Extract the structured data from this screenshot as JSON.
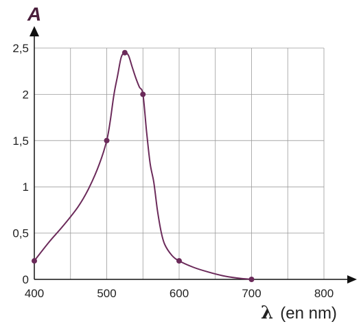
{
  "chart_data": {
    "type": "line",
    "ylabel": "A",
    "xlabel_symbol": "λ",
    "xlabel_unit": "(en nm)",
    "xlim": [
      400,
      800
    ],
    "ylim": [
      0,
      2.5
    ],
    "x_ticks": [
      {
        "value": 400,
        "label": "400"
      },
      {
        "value": 500,
        "label": "500"
      },
      {
        "value": 600,
        "label": "600"
      },
      {
        "value": 700,
        "label": "700"
      },
      {
        "value": 800,
        "label": "800"
      }
    ],
    "y_ticks": [
      {
        "value": 0,
        "label": "0"
      },
      {
        "value": 0.5,
        "label": "0,5"
      },
      {
        "value": 1,
        "label": "1"
      },
      {
        "value": 1.5,
        "label": "1,5"
      },
      {
        "value": 2,
        "label": "2"
      },
      {
        "value": 2.5,
        "label": "2,5"
      }
    ],
    "grid": true,
    "grid_x_step": 50,
    "grid_y_step": 0.5,
    "line_color": "#6b2a5a",
    "grid_color": "#9a9a9a",
    "series": [
      {
        "points": [
          {
            "x": 400,
            "y": 0.2
          },
          {
            "x": 500,
            "y": 1.5
          },
          {
            "x": 525,
            "y": 2.45
          },
          {
            "x": 550,
            "y": 2.0
          },
          {
            "x": 600,
            "y": 0.2
          },
          {
            "x": 700,
            "y": 0.0
          }
        ],
        "curve": [
          [
            400,
            0.2
          ],
          [
            420,
            0.4
          ],
          [
            440,
            0.58
          ],
          [
            460,
            0.78
          ],
          [
            475,
            0.98
          ],
          [
            490,
            1.25
          ],
          [
            500,
            1.5
          ],
          [
            505,
            1.72
          ],
          [
            510,
            2.0
          ],
          [
            515,
            2.2
          ],
          [
            520,
            2.4
          ],
          [
            525,
            2.45
          ],
          [
            530,
            2.42
          ],
          [
            535,
            2.3
          ],
          [
            540,
            2.18
          ],
          [
            545,
            2.08
          ],
          [
            550,
            2.0
          ],
          [
            555,
            1.6
          ],
          [
            560,
            1.25
          ],
          [
            565,
            1.05
          ],
          [
            570,
            0.75
          ],
          [
            575,
            0.52
          ],
          [
            580,
            0.38
          ],
          [
            590,
            0.26
          ],
          [
            600,
            0.2
          ],
          [
            620,
            0.13
          ],
          [
            640,
            0.08
          ],
          [
            660,
            0.04
          ],
          [
            680,
            0.015
          ],
          [
            700,
            0.0
          ]
        ]
      }
    ]
  }
}
